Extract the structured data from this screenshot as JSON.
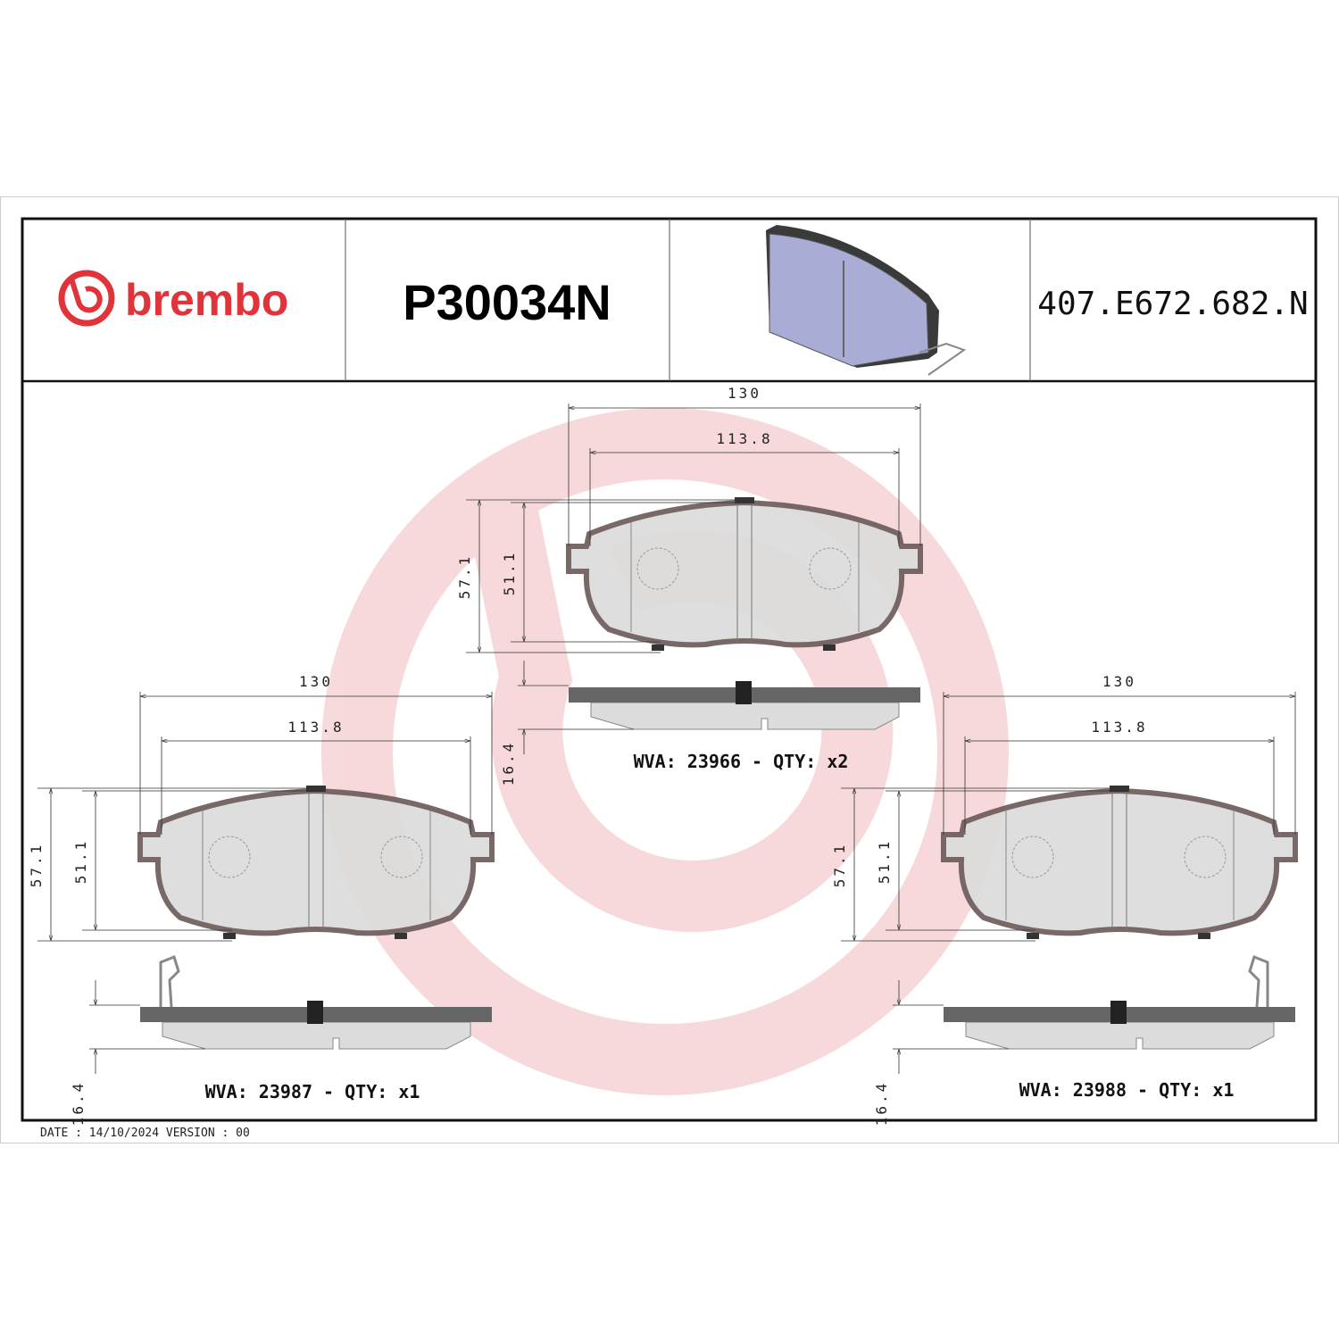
{
  "header": {
    "brand": "brembo",
    "part_number": "P30034N",
    "code": "407.E672.682.N"
  },
  "colors": {
    "brand_red": "#e0333a",
    "watermark": "#f6d3d5",
    "pad_fill": "#dcdcdc",
    "backplate": "#6e5c5c",
    "thumbnail": "#a9acd4"
  },
  "views": [
    {
      "dims": {
        "overall_width": "130",
        "friction_width": "113.8",
        "overall_height": "57.1",
        "friction_height": "51.1",
        "thickness": "16.4"
      },
      "label": "WVA:  23966  -  QTY:  x2",
      "wear_indicator": false
    },
    {
      "dims": {
        "overall_width": "130",
        "friction_width": "113.8",
        "overall_height": "57.1",
        "friction_height": "51.1",
        "thickness": "16.4"
      },
      "label": "WVA:  23987  -  QTY:  x1",
      "wear_indicator": true
    },
    {
      "dims": {
        "overall_width": "130",
        "friction_width": "113.8",
        "overall_height": "57.1",
        "friction_height": "51.1",
        "thickness": "16.4"
      },
      "label": "WVA:  23988  -  QTY:  x1",
      "wear_indicator": true
    }
  ],
  "footer": {
    "text": "DATE : 14/10/2024 VERSION : 00"
  }
}
